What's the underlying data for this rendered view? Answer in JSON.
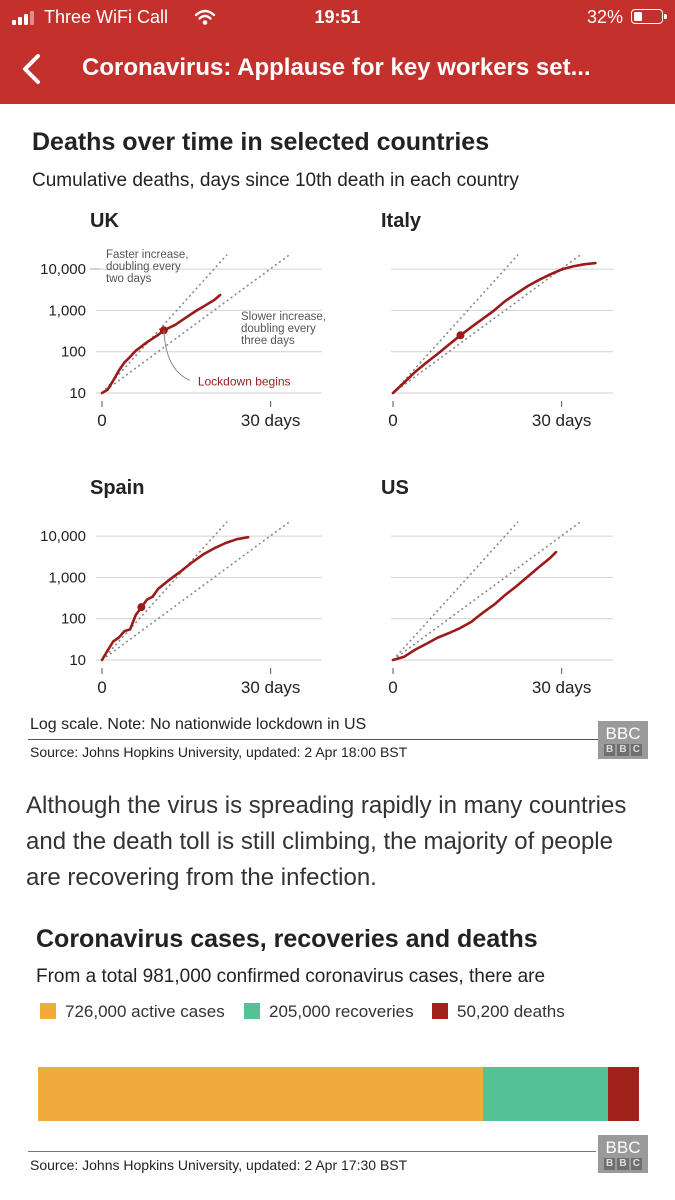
{
  "status_bar": {
    "carrier": "Three WiFi Call",
    "time": "19:51",
    "battery": "32%",
    "battery_level": 0.32
  },
  "nav": {
    "title": "Coronavirus: Applause for key workers set..."
  },
  "chart1": {
    "title": "Deaths over time in selected countries",
    "subtitle": "Cumulative deaths, days since 10th death in each country",
    "note": "Log scale. Note: No nationwide lockdown in US",
    "source": "Source: Johns Hopkins University, updated:  2 Apr  18:00 BST",
    "annotations": {
      "faster": [
        "Faster increase,",
        "doubling every",
        "two days"
      ],
      "slower": [
        "Slower increase,",
        "doubling every",
        "three days"
      ],
      "lockdown": "Lockdown begins"
    }
  },
  "chart2": {
    "title": "Coronavirus cases, recoveries and deaths",
    "subtitle": "From a total 981,000 confirmed coronavirus cases, there are",
    "source": "Source: Johns Hopkins University, updated:  2 Apr 17:30 BST"
  },
  "bbc_logo": "BBC",
  "paragraph": "Although the virus is spreading rapidly in many countries and the death toll is still climbing, the majority of people are recovering from the infection.",
  "colors": {
    "header": "#c4302b",
    "line": "#9b1b1b",
    "active": "#f0ab3c",
    "recovered": "#55c296",
    "deaths": "#a0221a"
  },
  "chart_data": [
    {
      "type": "line",
      "title": "Deaths over time in selected countries",
      "subtitle": "Cumulative deaths, days since 10th death in each country",
      "scale": "log",
      "xticks": [
        0,
        30
      ],
      "xtick_labels": [
        "0",
        "30 days"
      ],
      "yticks": [
        10,
        100,
        1000,
        10000
      ],
      "ytick_labels": [
        "10",
        "100",
        "1,000",
        "10,000"
      ],
      "xlim": [
        0,
        37
      ],
      "ylim_log10": [
        1,
        4.35
      ],
      "reference_lines": [
        {
          "name": "doubling every two days",
          "doubling_days": 2
        },
        {
          "name": "doubling every three days",
          "doubling_days": 3
        }
      ],
      "panels": [
        {
          "name": "UK",
          "lockdown_day": 11,
          "x": [
            0,
            1,
            2,
            3,
            4,
            5,
            6,
            8,
            10,
            11,
            13,
            15,
            17,
            18,
            20,
            21
          ],
          "y": [
            10,
            12,
            20,
            35,
            55,
            75,
            105,
            170,
            255,
            330,
            445,
            680,
            1030,
            1230,
            1800,
            2360
          ]
        },
        {
          "name": "Italy",
          "lockdown_day": 12,
          "x": [
            0,
            2,
            4,
            6,
            8,
            10,
            12,
            14,
            16,
            18,
            20,
            22,
            24,
            26,
            28,
            30,
            32,
            34,
            36
          ],
          "y": [
            10,
            18,
            33,
            55,
            90,
            150,
            250,
            400,
            630,
            1000,
            1700,
            2600,
            3900,
            5500,
            7500,
            9800,
            11600,
            13100,
            14000
          ]
        },
        {
          "name": "Spain",
          "lockdown_day": 7,
          "x": [
            0,
            1,
            2,
            3,
            4,
            5,
            6,
            7,
            8,
            9,
            10,
            12,
            14,
            16,
            18,
            20,
            22,
            24,
            26
          ],
          "y": [
            10,
            17,
            28,
            35,
            50,
            55,
            122,
            190,
            290,
            340,
            530,
            880,
            1400,
            2300,
            3600,
            5100,
            6800,
            8400,
            9400
          ]
        },
        {
          "name": "US",
          "lockdown_day": null,
          "x": [
            0,
            2,
            4,
            6,
            8,
            10,
            12,
            14,
            15,
            16,
            18,
            20,
            22,
            24,
            26,
            28,
            29
          ],
          "y": [
            10,
            12,
            18,
            25,
            35,
            45,
            60,
            85,
            110,
            140,
            220,
            380,
            620,
            1050,
            1800,
            3000,
            4100
          ]
        }
      ]
    },
    {
      "type": "bar",
      "stacked": true,
      "title": "Coronavirus cases, recoveries and deaths",
      "subtitle": "From a total 981,000 confirmed coronavirus cases, there are",
      "total": 981000,
      "series": [
        {
          "name": "active cases",
          "label": "726,000 active cases",
          "value": 726000,
          "color": "#f0ab3c"
        },
        {
          "name": "recoveries",
          "label": "205,000 recoveries",
          "value": 205000,
          "color": "#55c296"
        },
        {
          "name": "deaths",
          "label": "50,200 deaths",
          "value": 50200,
          "color": "#a0221a"
        }
      ]
    }
  ]
}
